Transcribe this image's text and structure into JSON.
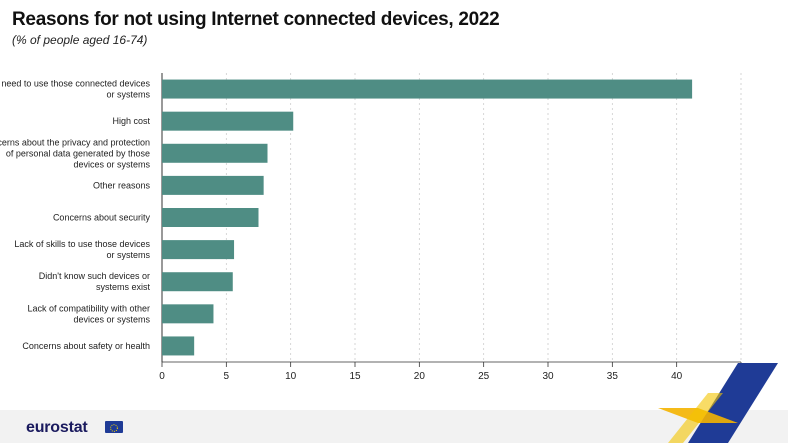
{
  "header": {
    "title": "Reasons for not using Internet connected devices, 2022",
    "subtitle": "(% of people aged 16-74)"
  },
  "branding": {
    "logo": "eurostat",
    "flag_icon": "eu-flag-icon"
  },
  "colors": {
    "bar": "#4f8d84",
    "grid": "#cccccc",
    "accent_yellow": "#f4b400",
    "accent_blue": "#1f3b96"
  },
  "chart_data": {
    "type": "bar",
    "orientation": "horizontal",
    "categories": [
      "No need to use those connected devices\nor systems",
      "High cost",
      "Concerns about the privacy and protection\nof personal data generated by those\ndevices or systems",
      "Other reasons",
      "Concerns about security",
      "Lack of skills to use those devices\nor systems",
      "Didn't know such devices or\nsystems exist",
      "Lack of compatibility with other\ndevices or systems",
      "Concerns about safety or health"
    ],
    "values": [
      41.2,
      10.2,
      8.2,
      7.9,
      7.5,
      5.6,
      5.5,
      4.0,
      2.5
    ],
    "xlim": [
      0,
      45
    ],
    "xticks": [
      0,
      5,
      10,
      15,
      20,
      25,
      30,
      35,
      40,
      45
    ],
    "grid": "vertical dashed",
    "legend": "none"
  }
}
